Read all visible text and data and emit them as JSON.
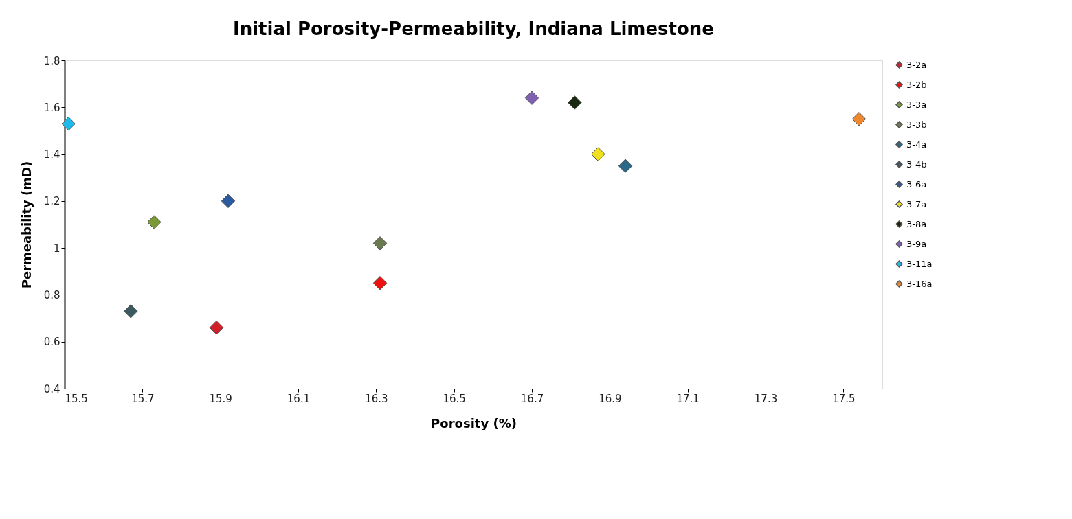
{
  "chart_data": {
    "type": "scatter",
    "title": "Initial Porosity-Permeability, Indiana Limestone",
    "xlabel": "Porosity (%)",
    "ylabel": "Permeability (mD)",
    "xlim": [
      15.5,
      17.6
    ],
    "xticks": [
      15.5,
      15.7,
      15.9,
      16.1,
      16.3,
      16.5,
      16.7,
      16.9,
      17.1,
      17.3,
      17.5
    ],
    "ylim": [
      0.4,
      1.8
    ],
    "yticks": [
      0.4,
      0.6,
      0.8,
      1,
      1.2,
      1.4,
      1.6,
      1.8
    ],
    "grid": false,
    "legend": "right",
    "marker": "diamond",
    "series": [
      {
        "name": "3-2a",
        "color": "#d0202a",
        "x": [
          15.89
        ],
        "values": [
          0.66
        ]
      },
      {
        "name": "3-2b",
        "color": "#ee1111",
        "x": [
          16.31
        ],
        "values": [
          0.85
        ]
      },
      {
        "name": "3-3a",
        "color": "#7a9a3a",
        "x": [
          15.73
        ],
        "values": [
          1.11
        ]
      },
      {
        "name": "3-3b",
        "color": "#6a7a50",
        "x": [
          16.31
        ],
        "values": [
          1.02
        ]
      },
      {
        "name": "3-4a",
        "color": "#2a6a88",
        "x": [
          16.94
        ],
        "values": [
          1.35
        ]
      },
      {
        "name": "3-4b",
        "color": "#3a5a60",
        "x": [
          15.67
        ],
        "values": [
          0.73
        ]
      },
      {
        "name": "3-6a",
        "color": "#2a5aa0",
        "x": [
          15.92
        ],
        "values": [
          1.2
        ]
      },
      {
        "name": "3-7a",
        "color": "#f0e020",
        "x": [
          16.87
        ],
        "values": [
          1.4
        ]
      },
      {
        "name": "3-8a",
        "color": "#1a2a10",
        "x": [
          16.81
        ],
        "values": [
          1.62
        ]
      },
      {
        "name": "3-9a",
        "color": "#8060b0",
        "x": [
          16.7
        ],
        "values": [
          1.64
        ]
      },
      {
        "name": "3-11a",
        "color": "#20b8e8",
        "x": [
          15.51
        ],
        "values": [
          1.53
        ]
      },
      {
        "name": "3-16a",
        "color": "#ee8830",
        "x": [
          17.54
        ],
        "values": [
          1.55
        ]
      }
    ]
  }
}
